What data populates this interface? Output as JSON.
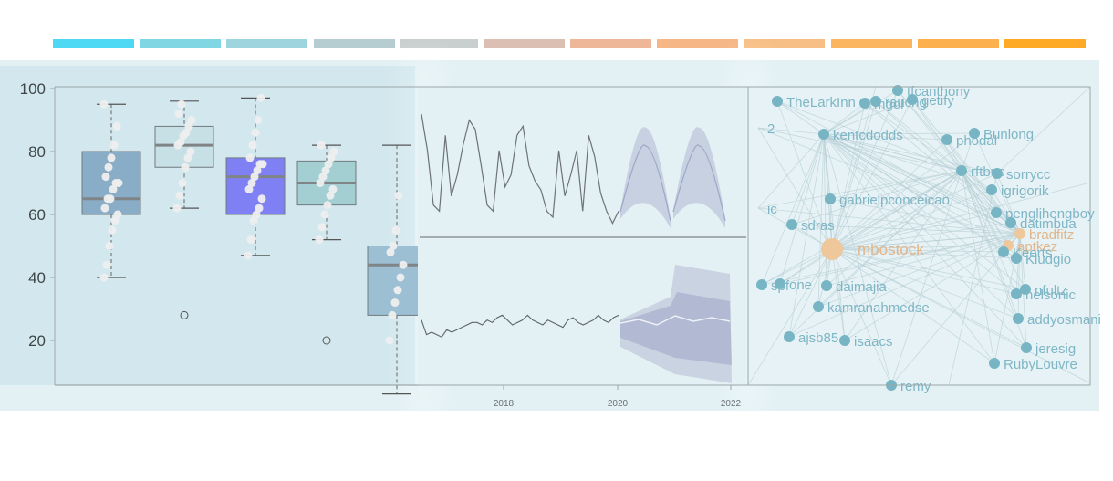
{
  "palette": [
    "#4dd9f4",
    "#80d7e3",
    "#9dd4de",
    "#b5ccd1",
    "#c9cfcf",
    "#dbbfb3",
    "#eeb79a",
    "#f6b686",
    "#f7bf86",
    "#fbb45f",
    "#fdb04e",
    "#ffaa26"
  ],
  "chart_data": [
    {
      "type": "box",
      "title": "",
      "xlabel": "",
      "ylabel": "",
      "ylim": [
        0,
        100
      ],
      "y_ticks": [
        "20",
        "40",
        "60",
        "80",
        "100"
      ],
      "box_colors": [
        "#8aadc7",
        "#c6e0e6",
        "#8080f5",
        "#a3cfd2",
        "#9dbfd4"
      ],
      "series": [
        {
          "min": 40,
          "q1": 60,
          "median": 65,
          "q3": 80,
          "max": 95,
          "outliers": [],
          "points": [
            40,
            44,
            50,
            55,
            58,
            60,
            62,
            65,
            65,
            68,
            70,
            70,
            72,
            75,
            78,
            82,
            88,
            95
          ]
        },
        {
          "min": 62,
          "q1": 75,
          "median": 82,
          "q3": 88,
          "max": 96,
          "outliers": [
            28
          ],
          "points": [
            62,
            66,
            70,
            75,
            78,
            80,
            82,
            83,
            85,
            86,
            88,
            90,
            92,
            95
          ]
        },
        {
          "min": 47,
          "q1": 60,
          "median": 72,
          "q3": 78,
          "max": 97,
          "outliers": [],
          "points": [
            47,
            52,
            58,
            60,
            62,
            65,
            68,
            70,
            72,
            74,
            76,
            76,
            78,
            82,
            86,
            90,
            97
          ]
        },
        {
          "min": 52,
          "q1": 63,
          "median": 70,
          "q3": 77,
          "max": 82,
          "outliers": [
            20
          ],
          "points": [
            52,
            56,
            60,
            63,
            66,
            68,
            70,
            72,
            74,
            76,
            78,
            80,
            82
          ]
        },
        {
          "min": 3,
          "q1": 28,
          "median": 44,
          "q3": 50,
          "max": 82,
          "outliers": [],
          "points": [
            20,
            28,
            32,
            36,
            40,
            44,
            48,
            50,
            55,
            66
          ]
        }
      ]
    },
    {
      "type": "line",
      "title": "",
      "x_ticks": [
        "2018",
        "2020",
        "2022"
      ],
      "series": [
        {
          "values": [
            92,
            80,
            62,
            60,
            85,
            65,
            72,
            82,
            90,
            87,
            75,
            62,
            60,
            80,
            68,
            72,
            85,
            88,
            75,
            70,
            67,
            60,
            58,
            80,
            65,
            72,
            80,
            60,
            85,
            78,
            66,
            60,
            56,
            60
          ]
        },
        {
          "values": [
            68,
            62,
            63,
            62,
            61,
            64,
            63,
            64,
            65,
            66,
            67,
            67,
            66,
            68,
            67,
            69,
            70,
            68,
            66,
            67,
            68,
            70,
            68,
            67,
            66,
            68,
            67,
            66,
            65,
            68,
            69,
            67,
            66,
            67,
            68,
            70,
            68,
            67,
            69,
            70
          ]
        }
      ]
    },
    {
      "type": "network",
      "title": "",
      "nodes": [
        "TheLarkInn",
        "mgol",
        "rauchg",
        "tfcanthony",
        "getify",
        "kentcdodds",
        "phodal",
        "Bunlong",
        "rftbus",
        "sorrycc",
        "igrigorik",
        "gabrielpconceicao",
        "penglihengboy",
        "datimbua",
        "bradfitz",
        "aptkez",
        "Keerts",
        "Kludgio",
        "sdras",
        "mbostock",
        "one",
        "daimajia",
        "spf",
        "nfultz",
        "nelsonic",
        "kamranahmedse",
        "addyosmani",
        "ajsb85",
        "isaacs",
        "jeresig",
        "RubyLouvre",
        "remy",
        "2",
        "ic"
      ]
    }
  ]
}
